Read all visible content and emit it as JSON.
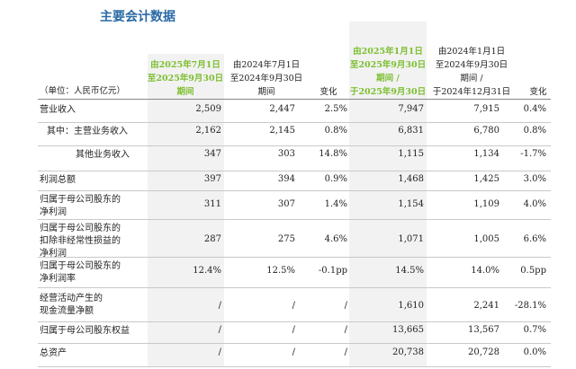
{
  "title": "主要会计数据",
  "unit": "（单位：人民币亿元）",
  "headers": {
    "q3_2025": [
      "由2025年7月1日",
      "至2025年9月30日",
      "期间"
    ],
    "q3_2024": [
      "由2024年7月1日",
      "至2024年9月30日",
      "期间"
    ],
    "change_q": "变化",
    "ytd_2025": [
      "由2025年1月1日",
      "至2025年9月30日",
      "期间 /",
      "于2025年9月30日"
    ],
    "ytd_2024": [
      "由2024年1月1日",
      "至2024年9月30日",
      "期间 /",
      "于2024年12月31日"
    ],
    "change_ytd": "变化"
  },
  "rows": [
    {
      "label": "营业收入",
      "v1": "2,509",
      "v2": "2,447",
      "c1": "2.5%",
      "v3": "7,947",
      "v4": "7,915",
      "c2": "0.4%"
    },
    {
      "label": "其中：主营业务收入",
      "v1": "2,162",
      "v2": "2,145",
      "c1": "0.8%",
      "v3": "6,831",
      "v4": "6,780",
      "c2": "0.8%"
    },
    {
      "label": "其他业务收入",
      "v1": "347",
      "v2": "303",
      "c1": "14.8%",
      "v3": "1,115",
      "v4": "1,134",
      "c2": "-1.7%"
    },
    {
      "label": "利润总额",
      "v1": "397",
      "v2": "394",
      "c1": "0.9%",
      "v3": "1,468",
      "v4": "1,425",
      "c2": "3.0%"
    },
    {
      "label": "归属于母公司股东的\n净利润",
      "v1": "311",
      "v2": "307",
      "c1": "1.4%",
      "v3": "1,154",
      "v4": "1,109",
      "c2": "4.0%"
    },
    {
      "label": "归属于母公司股东的\n扣除非经常性损益的\n净利润",
      "v1": "287",
      "v2": "275",
      "c1": "4.6%",
      "v3": "1,071",
      "v4": "1,005",
      "c2": "6.6%"
    },
    {
      "label": "归属于母公司股东的\n净利润率",
      "v1": "12.4%",
      "v2": "12.5%",
      "c1": "-0.1pp",
      "v3": "14.5%",
      "v4": "14.0%",
      "c2": "0.5pp"
    },
    {
      "label": "经营活动产生的\n现金流量净额",
      "v1": "/",
      "v2": "/",
      "c1": "/",
      "v3": "1,610",
      "v4": "2,241",
      "c2": "-28.1%"
    },
    {
      "label": "归属于母公司股东权益",
      "v1": "/",
      "v2": "/",
      "c1": "/",
      "v3": "13,665",
      "v4": "13,567",
      "c2": "0.7%"
    },
    {
      "label": "总资产",
      "v1": "/",
      "v2": "/",
      "c1": "/",
      "v3": "20,738",
      "v4": "20,728",
      "c2": "0.0%"
    }
  ]
}
